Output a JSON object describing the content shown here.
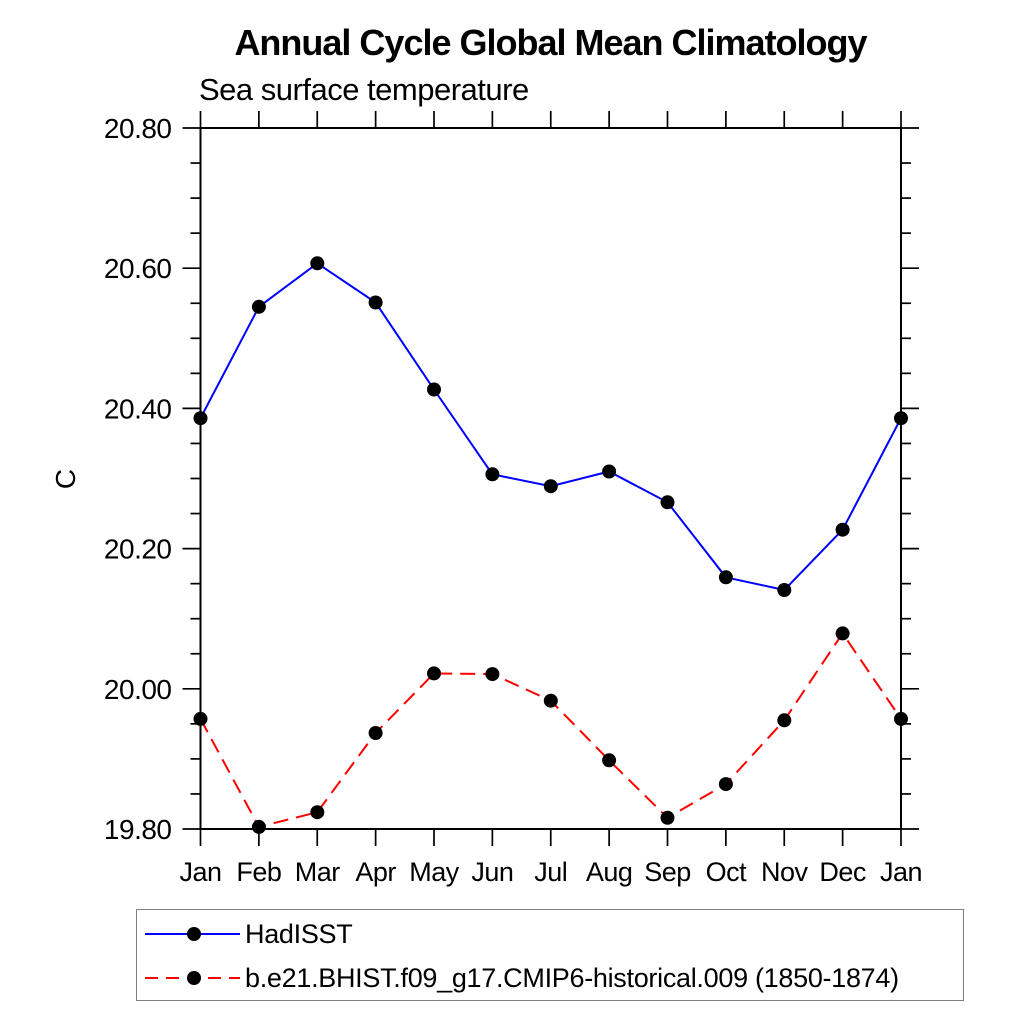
{
  "page": {
    "background": "#ffffff"
  },
  "colors": {
    "axis": "#000000",
    "marker": "#000000",
    "hadisst_line": "#0000ff",
    "model_line": "#ff0000",
    "legend_border": "#808080",
    "text": "#000000"
  },
  "chart_data": {
    "type": "line",
    "title": "Annual Cycle Global Mean Climatology",
    "subtitle": "Sea surface temperature",
    "ylabel": "C",
    "xlabel": "",
    "categories": [
      "Jan",
      "Feb",
      "Mar",
      "Apr",
      "May",
      "Jun",
      "Jul",
      "Aug",
      "Sep",
      "Oct",
      "Nov",
      "Dec",
      "Jan"
    ],
    "ylim": [
      19.8,
      20.8
    ],
    "ytick_values": [
      19.8,
      20.0,
      20.2,
      20.4,
      20.6,
      20.8
    ],
    "ytick_labels": [
      "19.80",
      "20.00",
      "20.20",
      "20.40",
      "20.60",
      "20.80"
    ],
    "y_minor_step": 0.05,
    "grid": "off",
    "legend_position": "bottom-left",
    "series": [
      {
        "name": "HadISST",
        "color": "#0000ff",
        "line_style": "solid",
        "marker": "circle",
        "marker_color": "#000000",
        "values": [
          20.386,
          20.545,
          20.607,
          20.551,
          20.427,
          20.306,
          20.289,
          20.31,
          20.266,
          20.159,
          20.141,
          20.227,
          20.386
        ]
      },
      {
        "name": "b.e21.BHIST.f09_g17.CMIP6-historical.009 (1850-1874)",
        "color": "#ff0000",
        "line_style": "dashed",
        "marker": "circle",
        "marker_color": "#000000",
        "values": [
          19.957,
          19.803,
          19.824,
          19.937,
          20.022,
          20.021,
          19.983,
          19.898,
          19.816,
          19.864,
          19.955,
          20.079,
          19.957
        ]
      }
    ]
  }
}
